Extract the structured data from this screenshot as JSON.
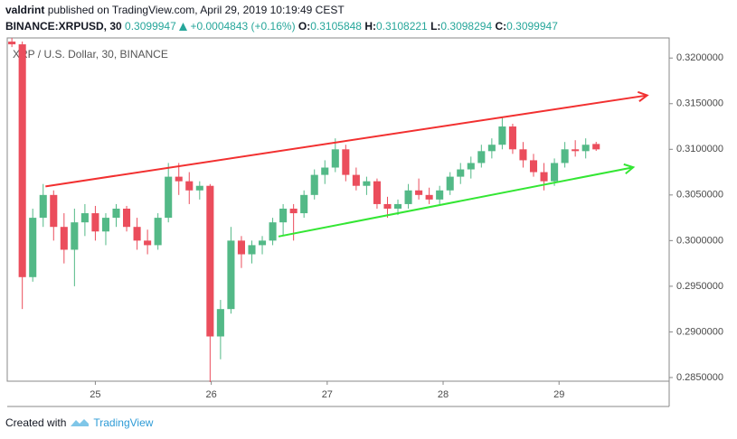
{
  "header": {
    "author": "valdrint",
    "published": "published on TradingView.com, April 29, 2019 10:19:49 CEST",
    "symbol": "BINANCE:XRPUSD, 30",
    "last": 0.3099947,
    "change": "+0.0004843 (+0.16%)",
    "ohlc": [
      {
        "label": "O:",
        "value": 0.3105848
      },
      {
        "label": "H:",
        "value": 0.3108221
      },
      {
        "label": "L:",
        "value": 0.3098294
      },
      {
        "label": "C:",
        "value": 0.3099947
      }
    ]
  },
  "chart_data": {
    "type": "candlestick",
    "title": "XRP / U.S. Dollar, 30, BINANCE",
    "up_color": "#53b987",
    "down_color": "#eb4d5c",
    "grid": false,
    "xlim": [
      24.24,
      29.95
    ],
    "xticks": [
      25,
      26,
      27,
      28,
      29
    ],
    "ylim": [
      0.2846,
      0.3222
    ],
    "yticks": [
      {
        "value": 0.285,
        "label": "0.2850000"
      },
      {
        "value": 0.29,
        "label": "0.2900000"
      },
      {
        "value": 0.295,
        "label": "0.2950000"
      },
      {
        "value": 0.3,
        "label": "0.3000000"
      },
      {
        "value": 0.305,
        "label": "0.3050000"
      },
      {
        "value": 0.31,
        "label": "0.3100000"
      },
      {
        "value": 0.315,
        "label": "0.3150000"
      },
      {
        "value": 0.32,
        "label": "0.3200000"
      }
    ],
    "x": [
      24.28,
      24.37,
      24.46,
      24.55,
      24.64,
      24.73,
      24.82,
      24.91,
      25.0,
      25.09,
      25.18,
      25.27,
      25.36,
      25.45,
      25.54,
      25.63,
      25.72,
      25.81,
      25.9,
      25.99,
      26.08,
      26.17,
      26.26,
      26.35,
      26.44,
      26.53,
      26.62,
      26.71,
      26.8,
      26.89,
      26.98,
      27.07,
      27.16,
      27.25,
      27.34,
      27.43,
      27.52,
      27.61,
      27.7,
      27.79,
      27.88,
      27.97,
      28.06,
      28.15,
      28.24,
      28.33,
      28.42,
      28.51,
      28.6,
      28.69,
      28.78,
      28.87,
      28.96,
      29.05,
      29.14,
      29.23,
      29.32
    ],
    "open": [
      0.3218,
      0.3215,
      0.296,
      0.3025,
      0.305,
      0.3015,
      0.299,
      0.302,
      0.303,
      0.301,
      0.3025,
      0.3035,
      0.3015,
      0.3,
      0.2995,
      0.3025,
      0.307,
      0.3065,
      0.3055,
      0.306,
      0.2895,
      0.2925,
      0.3,
      0.2985,
      0.2995,
      0.3,
      0.302,
      0.3035,
      0.303,
      0.305,
      0.3072,
      0.308,
      0.31,
      0.3072,
      0.306,
      0.3065,
      0.304,
      0.3035,
      0.304,
      0.3055,
      0.305,
      0.3045,
      0.3055,
      0.307,
      0.3078,
      0.3085,
      0.3098,
      0.3105,
      0.3125,
      0.31,
      0.3088,
      0.3075,
      0.3065,
      0.3085,
      0.31,
      0.3098,
      0.3105848
    ],
    "high": [
      0.3222,
      0.3218,
      0.3035,
      0.3062,
      0.3055,
      0.303,
      0.3035,
      0.304,
      0.3038,
      0.303,
      0.304,
      0.3038,
      0.3025,
      0.3012,
      0.303,
      0.3085,
      0.3085,
      0.3075,
      0.3065,
      0.3062,
      0.2935,
      0.3015,
      0.3005,
      0.3,
      0.3005,
      0.3025,
      0.304,
      0.304,
      0.3055,
      0.3078,
      0.3088,
      0.3112,
      0.3105,
      0.308,
      0.307,
      0.3068,
      0.3048,
      0.3045,
      0.3062,
      0.3068,
      0.3058,
      0.306,
      0.3075,
      0.3085,
      0.3092,
      0.3105,
      0.3112,
      0.3135,
      0.3128,
      0.3108,
      0.3095,
      0.3085,
      0.309,
      0.3108,
      0.311,
      0.3112,
      0.3108221
    ],
    "low": [
      0.3212,
      0.2925,
      0.2955,
      0.3015,
      0.3,
      0.2975,
      0.295,
      0.3005,
      0.3,
      0.2995,
      0.3015,
      0.301,
      0.299,
      0.2985,
      0.299,
      0.302,
      0.305,
      0.304,
      0.3045,
      0.2845,
      0.287,
      0.292,
      0.297,
      0.2975,
      0.2985,
      0.2995,
      0.3005,
      0.3,
      0.3025,
      0.3045,
      0.3062,
      0.3075,
      0.3065,
      0.3055,
      0.305,
      0.3035,
      0.3025,
      0.3028,
      0.3035,
      0.3045,
      0.304,
      0.304,
      0.305,
      0.3062,
      0.3068,
      0.308,
      0.309,
      0.31,
      0.3095,
      0.308,
      0.307,
      0.3055,
      0.306,
      0.308,
      0.3092,
      0.309,
      0.3098294
    ],
    "close": [
      0.3215,
      0.296,
      0.3025,
      0.305,
      0.3015,
      0.299,
      0.302,
      0.303,
      0.301,
      0.3025,
      0.3035,
      0.3015,
      0.3,
      0.2995,
      0.3025,
      0.307,
      0.3065,
      0.3055,
      0.306,
      0.2895,
      0.2925,
      0.3,
      0.2985,
      0.2995,
      0.3,
      0.302,
      0.3035,
      0.303,
      0.305,
      0.3072,
      0.308,
      0.31,
      0.3072,
      0.306,
      0.3065,
      0.304,
      0.3035,
      0.304,
      0.3055,
      0.305,
      0.3045,
      0.3055,
      0.307,
      0.3078,
      0.3085,
      0.3098,
      0.3105,
      0.3125,
      0.31,
      0.3088,
      0.3075,
      0.3065,
      0.3085,
      0.31,
      0.3098,
      0.3105,
      0.3099947
    ],
    "trendlines": [
      {
        "color": "#f23030",
        "x": [
          24.57,
          29.76
        ],
        "y": [
          0.30594,
          0.31591
        ]
      },
      {
        "color": "#33e633",
        "x": [
          26.58,
          29.64
        ],
        "y": [
          0.30045,
          0.30803
        ]
      }
    ]
  },
  "footer": {
    "created": "Created with",
    "brand": "TradingView"
  }
}
